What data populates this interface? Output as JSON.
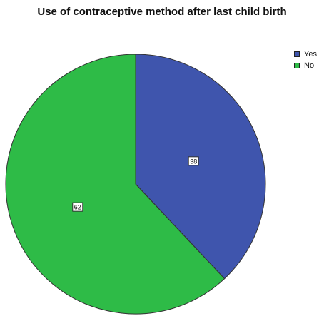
{
  "chart_data": {
    "type": "pie",
    "title": "Use of contraceptive method after last child birth",
    "categories": [
      "Yes",
      "No"
    ],
    "values": [
      38,
      62
    ],
    "data_labels": [
      "38",
      "62"
    ],
    "colors": [
      "#3f55ad",
      "#2ebb47"
    ],
    "legend_position": "top-right",
    "start_angle": "12 o'clock",
    "direction": "clockwise"
  }
}
